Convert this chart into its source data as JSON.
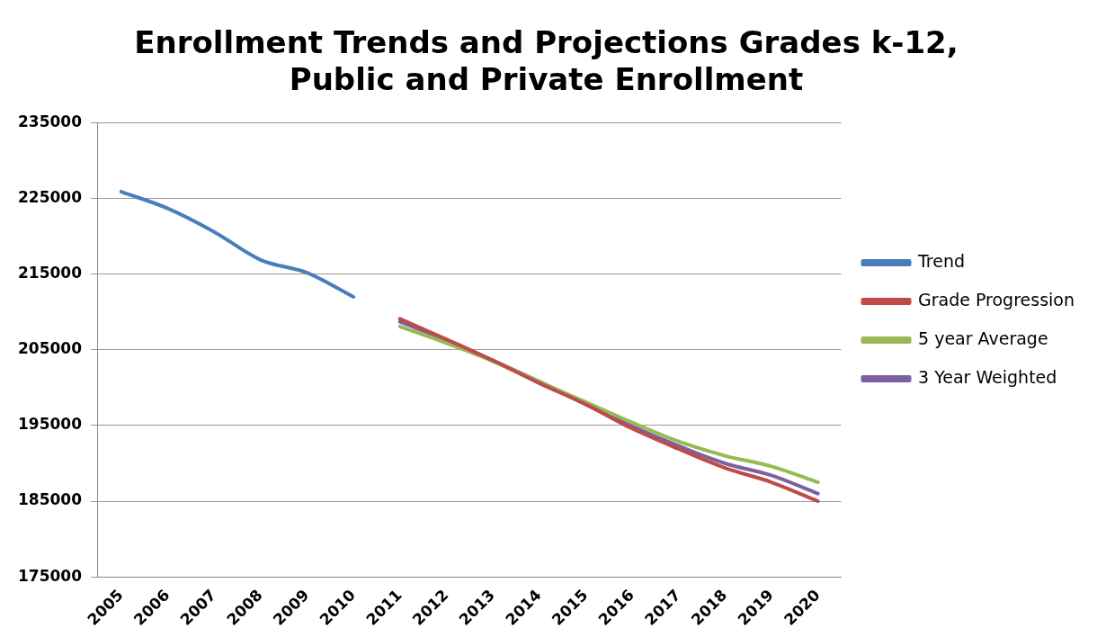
{
  "chart_data": {
    "type": "line",
    "title": "Enrollment Trends and Projections Grades k-12, Public and Private Enrollment",
    "categories": [
      "2005",
      "2006",
      "2007",
      "2008",
      "2009",
      "2010",
      "2011",
      "2012",
      "2013",
      "2014",
      "2015",
      "2016",
      "2017",
      "2018",
      "2019",
      "2020"
    ],
    "series": [
      {
        "name": "Trend",
        "color": "#4a7ebb",
        "values": [
          225900,
          223700,
          220600,
          216900,
          215200,
          212000,
          null,
          null,
          null,
          null,
          null,
          null,
          null,
          null,
          null,
          null
        ]
      },
      {
        "name": "Grade Progression",
        "color": "#be4b48",
        "values": [
          null,
          null,
          null,
          null,
          null,
          null,
          209100,
          206400,
          203600,
          200600,
          197800,
          194600,
          191900,
          189400,
          187500,
          185000
        ]
      },
      {
        "name": "5 year Average",
        "color": "#98b954",
        "values": [
          null,
          null,
          null,
          null,
          null,
          null,
          208100,
          205900,
          203500,
          200800,
          198100,
          195400,
          192900,
          191000,
          189600,
          187500
        ]
      },
      {
        "name": "3 Year Weighted",
        "color": "#7d60a0",
        "values": [
          null,
          null,
          null,
          null,
          null,
          null,
          208700,
          206300,
          203600,
          200800,
          197800,
          194900,
          192300,
          190000,
          188400,
          186000
        ]
      }
    ],
    "ylim": [
      175000,
      235000
    ],
    "yticks": [
      175000,
      185000,
      195000,
      205000,
      215000,
      225000,
      235000
    ],
    "grid": "y",
    "legend": "right",
    "marker": "none",
    "line_style": "solid"
  }
}
